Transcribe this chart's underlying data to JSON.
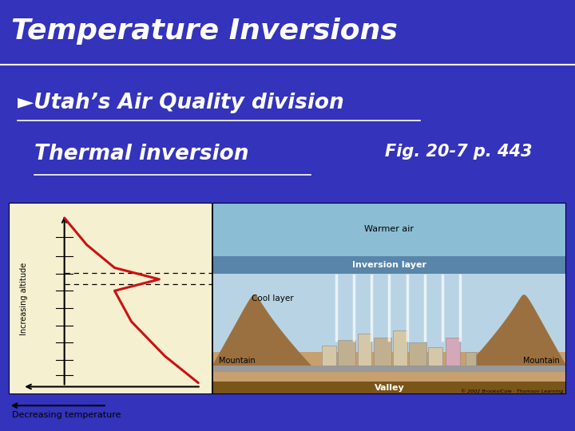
{
  "bg_color": "#3333bb",
  "title_text": "Temperature Inversions",
  "title_color": "#ffffff",
  "title_fontsize": 26,
  "bullet_text": "►Utah’s Air Quality division",
  "bullet_fontsize": 19,
  "sub_text": "Thermal inversion",
  "sub_fontsize": 19,
  "fig_text": "Fig. 20-7 p. 443",
  "fig_fontsize": 15,
  "left_panel_color": "#f5f0d0",
  "warmer_air_color": "#8bbdd4",
  "inversion_layer_color": "#5d8fa8",
  "cool_layer_color": "#b0cfe0",
  "ground_color": "#c8a878",
  "valley_floor_color": "#8b6020",
  "road_color": "#aaaaaa",
  "mountain_color": "#9b7040",
  "line_color": "#cc1111",
  "text_white": "#ffffff",
  "text_black": "#111111"
}
